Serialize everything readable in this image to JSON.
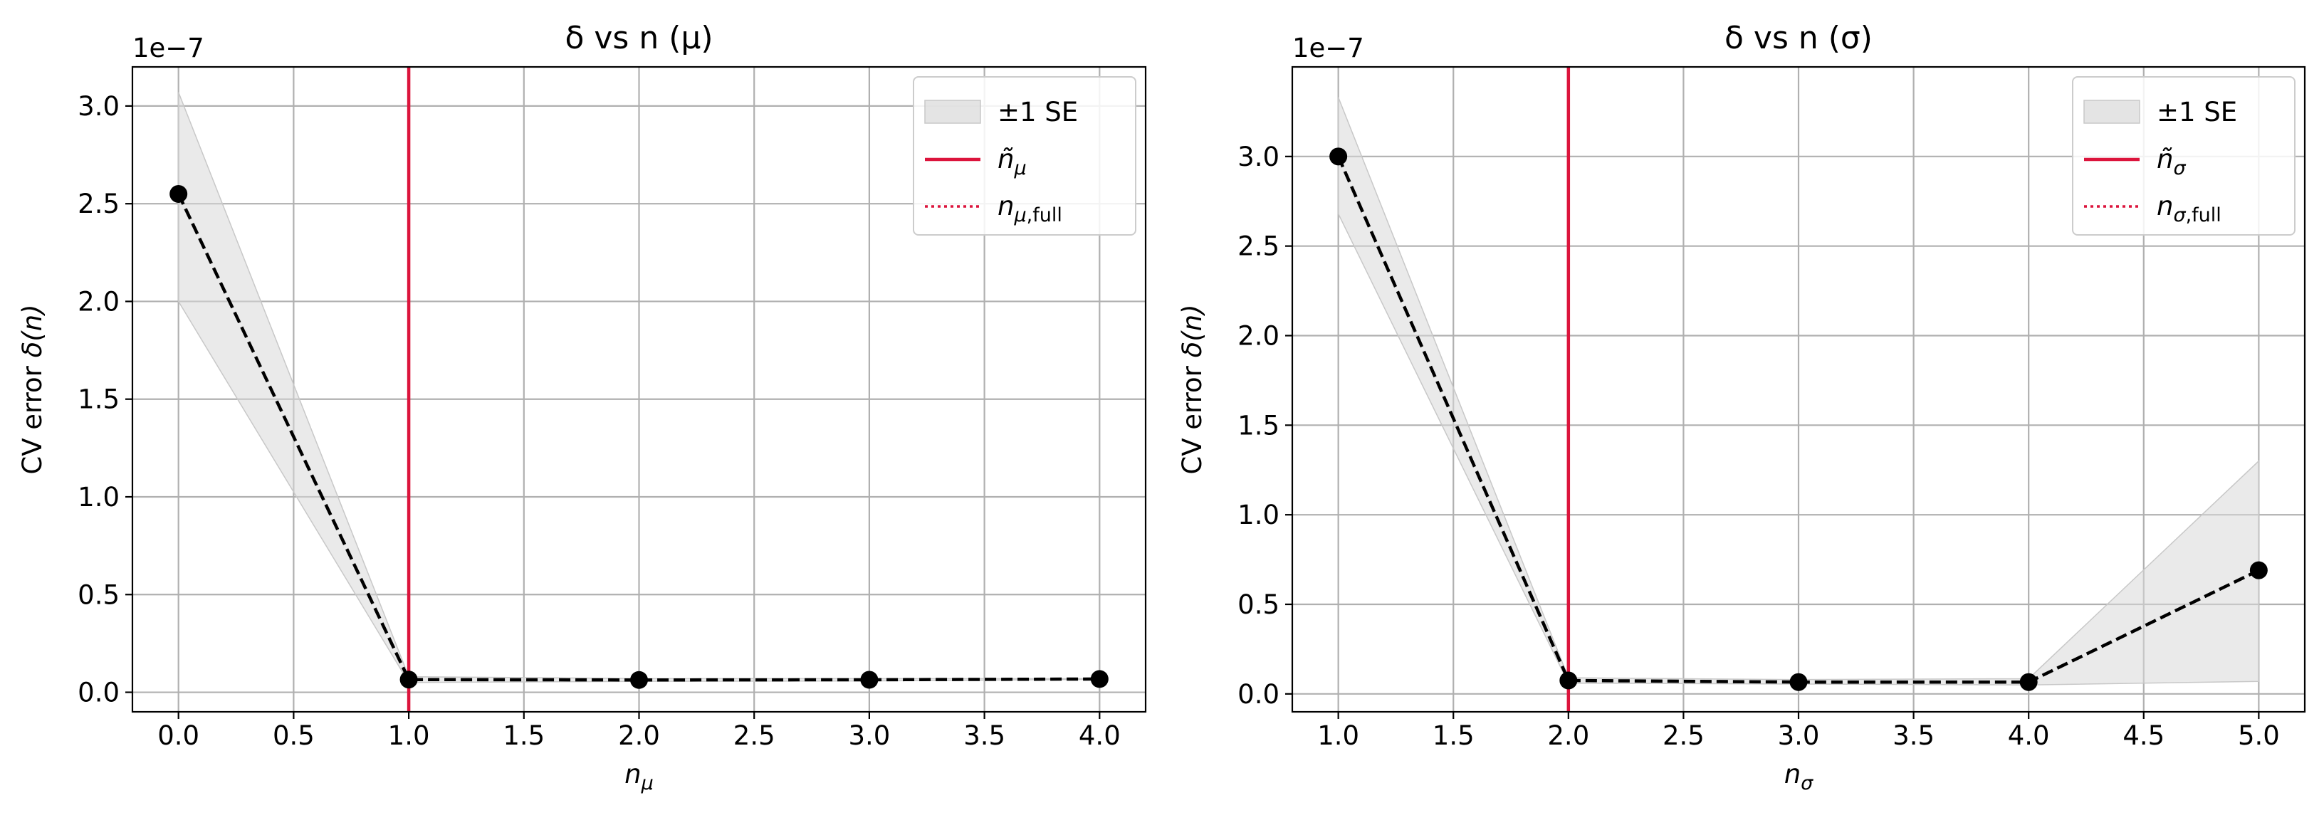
{
  "chart_data": [
    {
      "type": "line",
      "title": "δ vs n (μ)",
      "xlabel": "n_μ",
      "ylabel": "CV error δ(n)",
      "y_scale_note": "1e−7",
      "xlim": [
        -0.2,
        4.2
      ],
      "ylim": [
        -0.1,
        3.2
      ],
      "x_ticks": [
        "0.0",
        "0.5",
        "1.0",
        "1.5",
        "2.0",
        "2.5",
        "3.0",
        "3.5",
        "4.0"
      ],
      "x_tick_values": [
        0.0,
        0.5,
        1.0,
        1.5,
        2.0,
        2.5,
        3.0,
        3.5,
        4.0
      ],
      "y_ticks": [
        "0.0",
        "0.5",
        "1.0",
        "1.5",
        "2.0",
        "2.5",
        "3.0"
      ],
      "y_tick_values": [
        0.0,
        0.5,
        1.0,
        1.5,
        2.0,
        2.5,
        3.0
      ],
      "grid": true,
      "legend_position": "top-right",
      "series": [
        {
          "name": "CV error",
          "style": "black dashed with circle markers",
          "x": [
            0,
            1,
            2,
            3,
            4
          ],
          "y": [
            2.55,
            0.065,
            0.063,
            0.064,
            0.068
          ]
        }
      ],
      "se_band": {
        "name": "±1 SE",
        "x": [
          0,
          1,
          2,
          3,
          4
        ],
        "upper": [
          3.07,
          0.08,
          0.07,
          0.07,
          0.07
        ],
        "lower": [
          2.0,
          0.05,
          0.056,
          0.058,
          0.066
        ]
      },
      "vline_tilde": {
        "name": "ñ_μ",
        "x": 1.0
      },
      "vline_full": {
        "name": "n_μ,full"
      },
      "legend": [
        "±1 SE",
        "ñ_μ",
        "n_μ,full"
      ]
    },
    {
      "type": "line",
      "title": "δ vs n (σ)",
      "xlabel": "n_σ",
      "ylabel": "CV error δ(n)",
      "y_scale_note": "1e−7",
      "xlim": [
        0.8,
        5.2
      ],
      "ylim": [
        -0.1,
        3.5
      ],
      "x_ticks": [
        "1.0",
        "1.5",
        "2.0",
        "2.5",
        "3.0",
        "3.5",
        "4.0",
        "4.5",
        "5.0"
      ],
      "x_tick_values": [
        1.0,
        1.5,
        2.0,
        2.5,
        3.0,
        3.5,
        4.0,
        4.5,
        5.0
      ],
      "y_ticks": [
        "0.0",
        "0.5",
        "1.0",
        "1.5",
        "2.0",
        "2.5",
        "3.0"
      ],
      "y_tick_values": [
        0.0,
        0.5,
        1.0,
        1.5,
        2.0,
        2.5,
        3.0
      ],
      "grid": true,
      "legend_position": "top-right",
      "series": [
        {
          "name": "CV error",
          "style": "black dashed with circle markers",
          "x": [
            1,
            2,
            3,
            4,
            5
          ],
          "y": [
            3.0,
            0.075,
            0.066,
            0.066,
            0.69
          ]
        }
      ],
      "se_band": {
        "name": "±1 SE",
        "x": [
          1,
          2,
          3,
          4,
          5
        ],
        "upper": [
          3.33,
          0.09,
          0.08,
          0.085,
          1.3
        ],
        "lower": [
          2.68,
          0.06,
          0.055,
          0.05,
          0.07
        ]
      },
      "vline_tilde": {
        "name": "ñ_σ",
        "x": 2.0
      },
      "vline_full": {
        "name": "n_σ,full"
      },
      "legend": [
        "±1 SE",
        "ñ_σ",
        "n_σ,full"
      ]
    }
  ],
  "colors": {
    "line": "#000000",
    "band_fill": "#d9d9d9",
    "vline": "#dc143c",
    "grid": "#b0b0b0"
  }
}
